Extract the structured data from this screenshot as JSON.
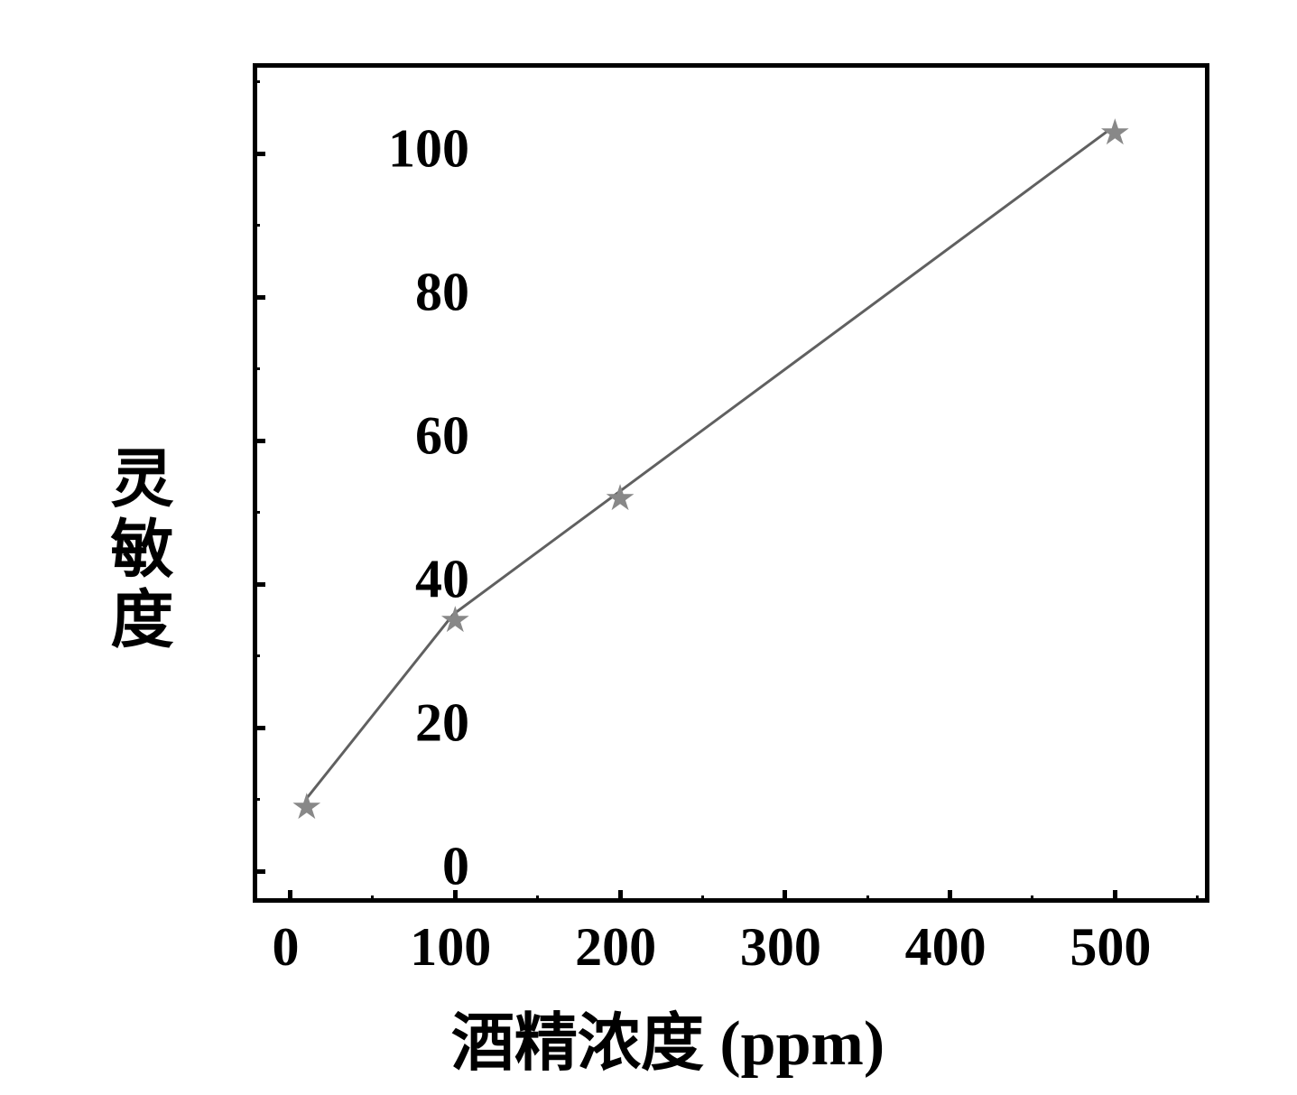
{
  "chart": {
    "type": "line",
    "y_axis_title": "灵敏度",
    "x_axis_title": "酒精浓度",
    "x_axis_unit": "(ppm)",
    "xlim": [
      -20,
      560
    ],
    "ylim": [
      -5,
      112
    ],
    "x_ticks": [
      0,
      100,
      200,
      300,
      400,
      500
    ],
    "y_ticks": [
      0,
      20,
      40,
      60,
      80,
      100
    ],
    "x_tick_labels": [
      "0",
      "100",
      "200",
      "300",
      "400",
      "500"
    ],
    "y_tick_labels": [
      "0",
      "20",
      "40",
      "60",
      "80",
      "100"
    ],
    "x_minor_step": 50,
    "y_minor_step": 10,
    "data_points": [
      {
        "x": 10,
        "y": 9
      },
      {
        "x": 100,
        "y": 35
      },
      {
        "x": 200,
        "y": 52
      },
      {
        "x": 500,
        "y": 103
      }
    ],
    "line_color": "#606060",
    "line_width": 3,
    "marker_symbol": "★",
    "marker_color": "#888888",
    "marker_size": 40,
    "border_color": "#000000",
    "border_width": 5,
    "background_color": "#ffffff",
    "tick_fontsize": 60,
    "title_fontsize": 70,
    "font_weight": "bold"
  }
}
